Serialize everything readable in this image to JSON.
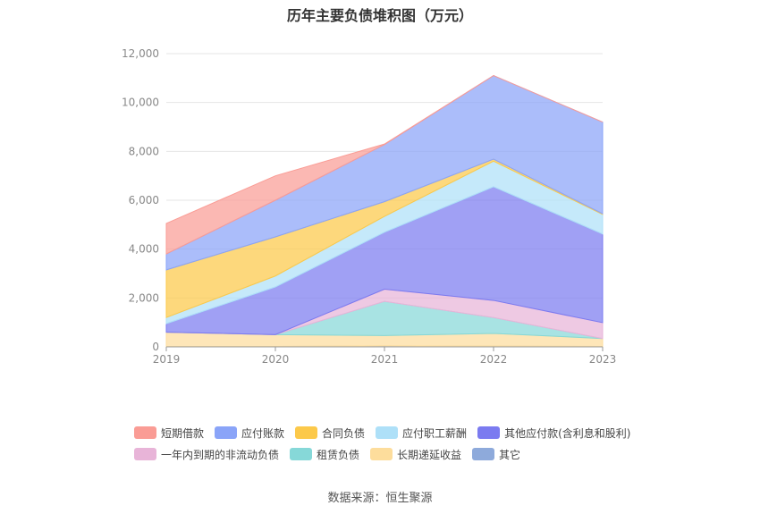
{
  "chart_data": {
    "type": "area",
    "title": "历年主要负债堆积图（万元）",
    "xlabel": "",
    "ylabel": "",
    "categories": [
      "2019",
      "2020",
      "2021",
      "2022",
      "2023"
    ],
    "ylim": [
      0,
      12000
    ],
    "yticks": [
      "0",
      "2,000",
      "4,000",
      "6,000",
      "8,000",
      "10,000",
      "12,000"
    ],
    "ytick_values": [
      0,
      2000,
      4000,
      6000,
      8000,
      10000,
      12000
    ],
    "stacked": true,
    "grid": true,
    "legend_position": "bottom",
    "series": [
      {
        "name": "其它",
        "color": "#8eaadb",
        "values": [
          20,
          20,
          40,
          30,
          20
        ]
      },
      {
        "name": "长期递延收益",
        "color": "#fddd9c",
        "values": [
          580,
          480,
          420,
          520,
          320
        ]
      },
      {
        "name": "租赁负债",
        "color": "#86d8d8",
        "values": [
          0,
          0,
          1400,
          650,
          0
        ]
      },
      {
        "name": "一年内到期的非流动负债",
        "color": "#e8b4d8",
        "values": [
          0,
          0,
          500,
          700,
          650
        ]
      },
      {
        "name": "其他应付款(含利息和股利)",
        "color": "#7b7bf0",
        "values": [
          350,
          1950,
          2330,
          4650,
          3630
        ]
      },
      {
        "name": "应付职工薪酬",
        "color": "#aee0f8",
        "values": [
          250,
          450,
          650,
          1050,
          800
        ]
      },
      {
        "name": "合同负债",
        "color": "#fcc94a",
        "values": [
          1950,
          1600,
          600,
          80,
          30
        ]
      },
      {
        "name": "应付账款",
        "color": "#8aa4f8",
        "values": [
          650,
          1500,
          2340,
          3420,
          3750
        ]
      },
      {
        "name": "短期借款",
        "color": "#fa9c95",
        "values": [
          1250,
          1000,
          20,
          0,
          0
        ]
      }
    ]
  },
  "legend": {
    "rows": [
      [
        0,
        1,
        2,
        3,
        4
      ],
      [
        5,
        6,
        7,
        8
      ]
    ],
    "names": [
      "短期借款",
      "应付账款",
      "合同负债",
      "应付职工薪酬",
      "其他应付款(含利息和股利)",
      "一年内到期的非流动负债",
      "租赁负债",
      "长期递延收益",
      "其它"
    ],
    "colors": [
      "#fa9c95",
      "#8aa4f8",
      "#fcc94a",
      "#aee0f8",
      "#7b7bf0",
      "#e8b4d8",
      "#86d8d8",
      "#fddd9c",
      "#8eaadb"
    ]
  },
  "source_note": "数据来源：恒生聚源"
}
